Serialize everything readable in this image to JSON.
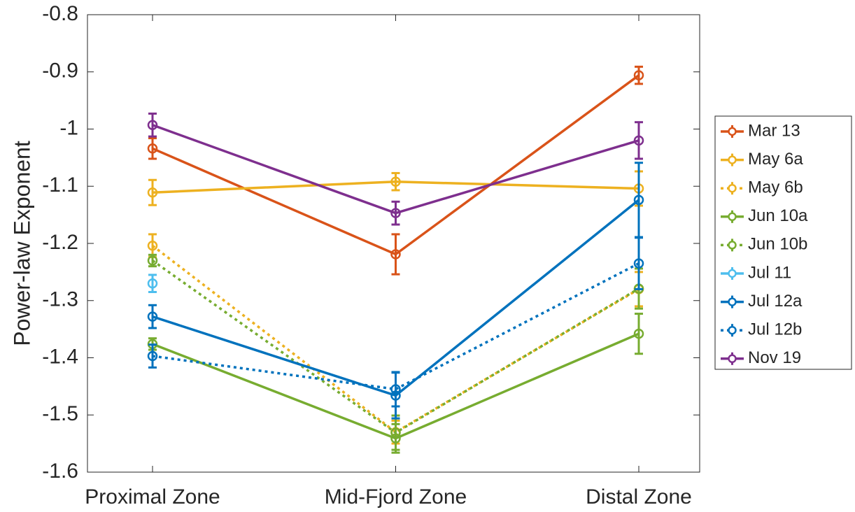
{
  "chart_data": {
    "type": "line",
    "ylabel": "Power-law Exponent",
    "categories": [
      "Proximal Zone",
      "Mid-Fjord Zone",
      "Distal Zone"
    ],
    "ylim": [
      -1.6,
      -0.8
    ],
    "yticks": [
      -1.6,
      -1.5,
      -1.4,
      -1.3,
      -1.2,
      -1.1,
      -1,
      -0.9,
      -0.8
    ],
    "legend": "outside-right",
    "series": [
      {
        "name": "Mar 13",
        "color": "#d95319",
        "dash": "solid",
        "values": [
          -1.034,
          -1.219,
          -0.906
        ],
        "errors": [
          0.018,
          0.035,
          0.015
        ]
      },
      {
        "name": "May 6a",
        "color": "#edb120",
        "dash": "solid",
        "values": [
          -1.111,
          -1.092,
          -1.104
        ],
        "errors": [
          0.022,
          0.015,
          0.03
        ]
      },
      {
        "name": "May 6b",
        "color": "#edb120",
        "dash": "dotted",
        "values": [
          -1.204,
          -1.53,
          -1.28
        ],
        "errors": [
          0.02,
          0.02,
          0.03
        ]
      },
      {
        "name": "Jun 10a",
        "color": "#77ac30",
        "dash": "solid",
        "values": [
          -1.376,
          -1.541,
          -1.358
        ],
        "errors": [
          0.01,
          0.025,
          0.035
        ]
      },
      {
        "name": "Jun 10b",
        "color": "#77ac30",
        "dash": "dotted",
        "values": [
          -1.23,
          -1.531,
          -1.279
        ],
        "errors": [
          0.01,
          0.03,
          0.035
        ]
      },
      {
        "name": "Jul 11",
        "color": "#4dbeee",
        "dash": "solid",
        "values": [
          -1.27,
          null,
          null
        ],
        "errors": [
          0.015,
          null,
          null
        ]
      },
      {
        "name": "Jul 12a",
        "color": "#0072bd",
        "dash": "solid",
        "values": [
          -1.328,
          -1.466,
          -1.124
        ],
        "errors": [
          0.02,
          0.04,
          0.065
        ]
      },
      {
        "name": "Jul 12b",
        "color": "#0072bd",
        "dash": "dotted",
        "values": [
          -1.397,
          -1.455,
          -1.235
        ],
        "errors": [
          0.02,
          0.03,
          0.045
        ]
      },
      {
        "name": "Nov 19",
        "color": "#7e2f8e",
        "dash": "solid",
        "values": [
          -0.993,
          -1.147,
          -1.02
        ],
        "errors": [
          0.02,
          0.02,
          0.032
        ]
      }
    ]
  }
}
